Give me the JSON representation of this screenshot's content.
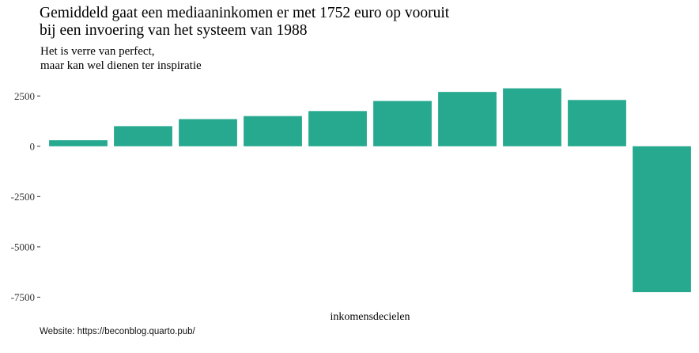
{
  "title": {
    "line1": "Gemiddeld gaat een mediaaninkomen er met 1752 euro op vooruit",
    "line2": "bij een invoering van het systeem van 1988"
  },
  "subtitle": {
    "line1": "Het is verre van perfect,",
    "line2": "maar kan wel dienen ter inspiratie"
  },
  "caption": "Website: https://beconblog.quarto.pub/",
  "colors": {
    "bar": "#26A98E",
    "tick": "#333333"
  },
  "chart_data": {
    "type": "bar",
    "title": "Gemiddeld gaat een mediaaninkomen er met 1752 euro op vooruit bij een invoering van het systeem van 1988",
    "subtitle": "Het is verre van perfect, maar kan wel dienen ter inspiratie",
    "xlabel": "inkomensdecielen",
    "ylabel": "",
    "categories": [
      "1",
      "2",
      "3",
      "4",
      "5",
      "6",
      "7",
      "8",
      "9",
      "10"
    ],
    "category_labels_shown": false,
    "values": [
      300,
      1000,
      1350,
      1500,
      1750,
      2250,
      2700,
      2880,
      2300,
      -7250
    ],
    "ylim": [
      -7600,
      3100
    ],
    "yticks": [
      2500,
      0,
      -2500,
      -5000,
      -7500
    ],
    "ytick_labels": [
      "2500",
      "0",
      "-2500",
      "-5000",
      "-7500"
    ],
    "grid": false,
    "legend": "none"
  }
}
